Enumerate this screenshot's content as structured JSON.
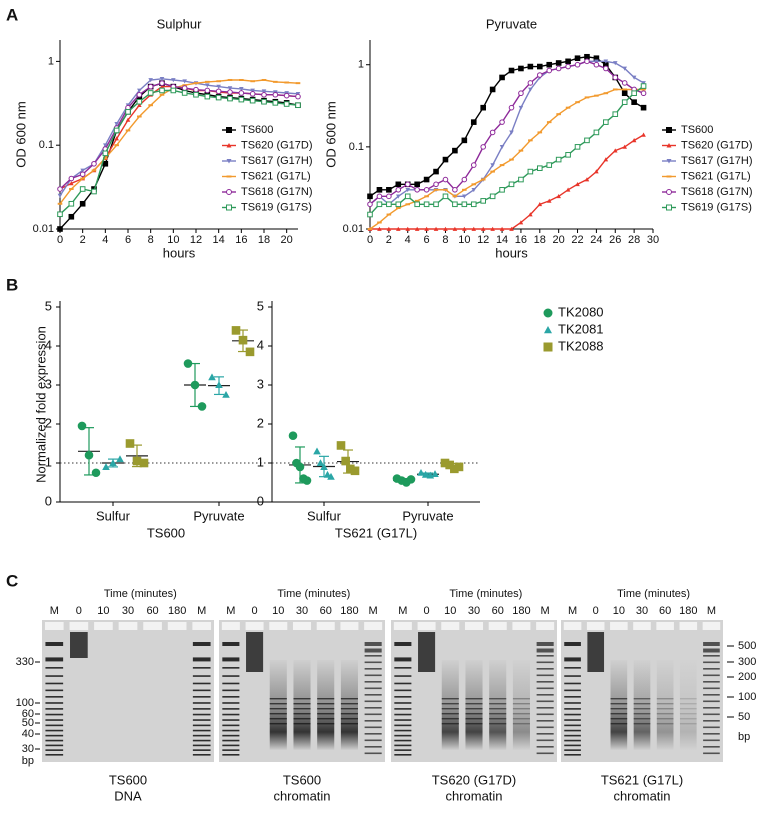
{
  "panel_labels": [
    "A",
    "B",
    "C"
  ],
  "chart_data": [
    {
      "type": "line",
      "title": "Sulphur",
      "xlabel": "hours",
      "ylabel": "OD 600 nm",
      "log_y": true,
      "x": [
        0,
        1,
        2,
        3,
        4,
        5,
        6,
        7,
        8,
        9,
        10,
        11,
        12,
        13,
        14,
        15,
        16,
        17,
        18,
        19,
        20,
        21
      ],
      "xlim": [
        0,
        21
      ],
      "xticks": [
        0,
        2,
        4,
        6,
        8,
        10,
        12,
        14,
        16,
        18,
        20
      ],
      "ylim": [
        0.01,
        1.8
      ],
      "yticks": [
        0.01,
        0.1,
        1
      ],
      "series": [
        {
          "name": "TS600",
          "color": "#000000",
          "marker": "square",
          "values": [
            0.01,
            0.014,
            0.02,
            0.03,
            0.06,
            0.15,
            0.25,
            0.38,
            0.5,
            0.55,
            0.5,
            0.45,
            0.42,
            0.4,
            0.38,
            0.37,
            0.36,
            0.35,
            0.34,
            0.33,
            0.32,
            0.3
          ]
        },
        {
          "name": "TS620 (G17D)",
          "color": "#e8352a",
          "marker": "triangle",
          "values": [
            0.03,
            0.035,
            0.04,
            0.05,
            0.07,
            0.12,
            0.2,
            0.3,
            0.4,
            0.5,
            0.5,
            0.48,
            0.45,
            0.45,
            0.43,
            0.42,
            0.42,
            0.41,
            0.4,
            0.4,
            0.39,
            0.38
          ]
        },
        {
          "name": "TS617 (G17H)",
          "color": "#7a7fc4",
          "marker": "tri-down",
          "values": [
            0.025,
            0.04,
            0.05,
            0.06,
            0.1,
            0.18,
            0.3,
            0.45,
            0.6,
            0.62,
            0.6,
            0.58,
            0.55,
            0.52,
            0.5,
            0.48,
            0.47,
            0.45,
            0.44,
            0.43,
            0.42,
            0.41
          ]
        },
        {
          "name": "TS621 (G17L)",
          "color": "#f29a2e",
          "marker": "dash",
          "values": [
            0.02,
            0.03,
            0.04,
            0.05,
            0.07,
            0.1,
            0.15,
            0.22,
            0.3,
            0.4,
            0.48,
            0.52,
            0.55,
            0.57,
            0.58,
            0.6,
            0.6,
            0.58,
            0.6,
            0.57,
            0.56,
            0.55
          ]
        },
        {
          "name": "TS618 (G17N)",
          "color": "#8e2a9a",
          "marker": "open-circle",
          "values": [
            0.03,
            0.04,
            0.045,
            0.06,
            0.09,
            0.16,
            0.28,
            0.4,
            0.5,
            0.55,
            0.5,
            0.48,
            0.46,
            0.45,
            0.44,
            0.43,
            0.42,
            0.41,
            0.4,
            0.4,
            0.39,
            0.38
          ]
        },
        {
          "name": "TS619 (G17S)",
          "color": "#2e9a5a",
          "marker": "open-square",
          "values": [
            0.015,
            0.02,
            0.03,
            0.028,
            0.08,
            0.15,
            0.25,
            0.33,
            0.42,
            0.45,
            0.45,
            0.42,
            0.4,
            0.38,
            0.37,
            0.36,
            0.35,
            0.34,
            0.33,
            0.32,
            0.31,
            0.3
          ]
        }
      ]
    },
    {
      "type": "line",
      "title": "Pyruvate",
      "xlabel": "hours",
      "ylabel": "OD 600 nm",
      "log_y": true,
      "x": [
        0,
        1,
        2,
        3,
        4,
        5,
        6,
        7,
        8,
        9,
        10,
        11,
        12,
        13,
        14,
        15,
        16,
        17,
        18,
        19,
        20,
        21,
        22,
        23,
        24,
        25,
        26,
        27,
        28,
        29
      ],
      "xlim": [
        0,
        30
      ],
      "xticks": [
        0,
        2,
        4,
        6,
        8,
        10,
        12,
        14,
        16,
        18,
        20,
        22,
        24,
        26,
        28,
        30
      ],
      "ylim": [
        0.01,
        2
      ],
      "yticks": [
        0.01,
        0.1,
        1
      ],
      "series": [
        {
          "name": "TS600",
          "color": "#000000",
          "marker": "square",
          "values": [
            0.025,
            0.03,
            0.03,
            0.035,
            0.035,
            0.035,
            0.04,
            0.05,
            0.07,
            0.09,
            0.12,
            0.2,
            0.3,
            0.5,
            0.7,
            0.85,
            0.9,
            0.95,
            0.95,
            1.0,
            1.05,
            1.1,
            1.2,
            1.25,
            1.2,
            1.0,
            0.7,
            0.45,
            0.35,
            0.3
          ]
        },
        {
          "name": "TS620 (G17D)",
          "color": "#e8352a",
          "marker": "triangle",
          "values": [
            0.01,
            0.01,
            0.01,
            0.01,
            0.01,
            0.01,
            0.01,
            0.01,
            0.01,
            0.01,
            0.01,
            0.01,
            0.01,
            0.01,
            0.01,
            0.01,
            0.012,
            0.015,
            0.02,
            0.022,
            0.025,
            0.03,
            0.035,
            0.04,
            0.05,
            0.07,
            0.09,
            0.1,
            0.12,
            0.14
          ]
        },
        {
          "name": "TS617 (G17H)",
          "color": "#7a7fc4",
          "marker": "tri-down",
          "values": [
            0.02,
            0.025,
            0.02,
            0.025,
            0.03,
            0.03,
            0.03,
            0.03,
            0.03,
            0.025,
            0.025,
            0.03,
            0.04,
            0.06,
            0.1,
            0.15,
            0.3,
            0.5,
            0.7,
            0.85,
            0.9,
            0.95,
            1.0,
            1.1,
            1.1,
            1.1,
            1.05,
            0.9,
            0.7,
            0.6
          ]
        },
        {
          "name": "TS621 (G17L)",
          "color": "#f29a2e",
          "marker": "dash",
          "values": [
            0.01,
            0.012,
            0.015,
            0.018,
            0.02,
            0.022,
            0.025,
            0.03,
            0.03,
            0.025,
            0.03,
            0.035,
            0.04,
            0.05,
            0.06,
            0.07,
            0.09,
            0.12,
            0.15,
            0.2,
            0.25,
            0.3,
            0.35,
            0.4,
            0.42,
            0.45,
            0.5,
            0.5,
            0.5,
            0.5
          ]
        },
        {
          "name": "TS618 (G17N)",
          "color": "#8e2a9a",
          "marker": "open-circle",
          "values": [
            0.02,
            0.025,
            0.025,
            0.03,
            0.035,
            0.03,
            0.03,
            0.035,
            0.04,
            0.03,
            0.04,
            0.06,
            0.1,
            0.15,
            0.2,
            0.3,
            0.45,
            0.6,
            0.75,
            0.85,
            0.9,
            0.95,
            1.0,
            1.1,
            1.0,
            0.9,
            0.7,
            0.6,
            0.5,
            0.45
          ]
        },
        {
          "name": "TS619 (G17S)",
          "color": "#2e9a5a",
          "marker": "open-square",
          "values": [
            0.015,
            0.02,
            0.02,
            0.02,
            0.025,
            0.02,
            0.02,
            0.02,
            0.025,
            0.02,
            0.02,
            0.02,
            0.022,
            0.025,
            0.03,
            0.035,
            0.04,
            0.05,
            0.055,
            0.06,
            0.07,
            0.08,
            0.1,
            0.12,
            0.15,
            0.2,
            0.25,
            0.35,
            0.45,
            0.55
          ]
        }
      ]
    },
    {
      "type": "dot",
      "ylabel": "Normalized fold expression",
      "ylim": [
        0,
        5
      ],
      "yticks": [
        0,
        1,
        2,
        3,
        4,
        5
      ],
      "reference_line": 1,
      "series": [
        {
          "name": "TK2080",
          "color": "#1e9a5c",
          "marker": "circle"
        },
        {
          "name": "TK2081",
          "color": "#2aa6a6",
          "marker": "triangle"
        },
        {
          "name": "TK2088",
          "color": "#9a9a2e",
          "marker": "square"
        }
      ],
      "panels": [
        {
          "label": "TS600",
          "categories": [
            "Sulfur",
            "Pyruvate"
          ],
          "values": [
            [
              [
                1.95,
                1.2,
                0.75
              ],
              [
                3.55,
                3.0,
                2.45
              ]
            ],
            [
              [
                0.9,
                1.0,
                1.1
              ],
              [
                3.2,
                3.0,
                2.75
              ]
            ],
            [
              [
                1.5,
                1.05,
                1.0
              ],
              [
                4.4,
                4.15,
                3.85
              ]
            ]
          ]
        },
        {
          "label": "TS621 (G17L)",
          "categories": [
            "Sulfur",
            "Pyruvate"
          ],
          "values": [
            [
              [
                1.7,
                1.0,
                0.9,
                0.6,
                0.55
              ],
              [
                0.6,
                0.55,
                0.5,
                0.58
              ]
            ],
            [
              [
                1.3,
                1.0,
                0.9,
                0.7,
                0.65
              ],
              [
                0.75,
                0.7,
                0.68,
                0.72
              ]
            ],
            [
              [
                1.45,
                1.05,
                0.85,
                0.8
              ],
              [
                1.0,
                0.95,
                0.85,
                0.9
              ]
            ]
          ]
        }
      ]
    }
  ],
  "gels": [
    {
      "time_label": "Time (minutes)",
      "lanes": [
        "M",
        "0",
        "10",
        "30",
        "60",
        "180",
        "M"
      ],
      "caption": [
        "TS600",
        "DNA"
      ]
    },
    {
      "time_label": "Time (minutes)",
      "lanes": [
        "M",
        "0",
        "10",
        "30",
        "60",
        "180",
        "M"
      ],
      "caption": [
        "TS600",
        "chromatin"
      ]
    },
    {
      "time_label": "Time (minutes)",
      "lanes": [
        "M",
        "0",
        "10",
        "30",
        "60",
        "180",
        "M"
      ],
      "caption": [
        "TS620 (G17D)",
        "chromatin"
      ]
    },
    {
      "time_label": "Time (minutes)",
      "lanes": [
        "M",
        "0",
        "10",
        "30",
        "60",
        "180",
        "M"
      ],
      "caption": [
        "TS621 (G17L)",
        "chromatin"
      ]
    }
  ],
  "left_ladder": [
    "330",
    "100",
    "60",
    "50",
    "40",
    "30",
    "bp"
  ],
  "right_ladder": [
    "500",
    "300",
    "200",
    "100",
    "50",
    "bp"
  ]
}
